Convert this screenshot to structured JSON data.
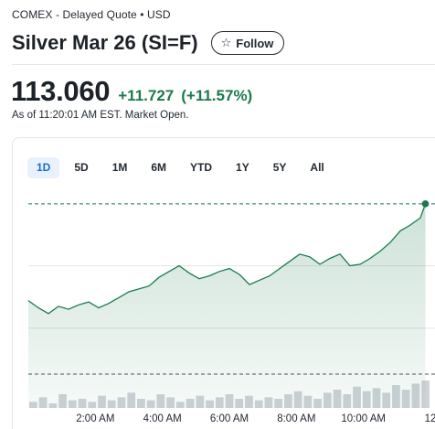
{
  "header": {
    "exchange": "COMEX - Delayed Quote • USD",
    "title": "Silver Mar 26 (SI=F)",
    "follow_label": "Follow",
    "follow_icon": "star-outline-icon"
  },
  "quote": {
    "price": "113.060",
    "change": "+11.727",
    "change_pct": "(+11.57%)",
    "as_of": "As of 11:20:01 AM EST. Market Open.",
    "positive_color": "#1b7a4c"
  },
  "ranges": [
    {
      "label": "1D",
      "active": true
    },
    {
      "label": "5D",
      "active": false
    },
    {
      "label": "1M",
      "active": false
    },
    {
      "label": "6M",
      "active": false
    },
    {
      "label": "YTD",
      "active": false
    },
    {
      "label": "1Y",
      "active": false
    },
    {
      "label": "5Y",
      "active": false
    },
    {
      "label": "All",
      "active": false
    }
  ],
  "chart_data": {
    "type": "area",
    "x_tick_labels": [
      "2:00 AM",
      "4:00 AM",
      "6:00 AM",
      "8:00 AM",
      "10:00 AM",
      "12"
    ],
    "x_ticks_hours": [
      2,
      4,
      6,
      8,
      10,
      12
    ],
    "x_range_hours": [
      0,
      12
    ],
    "y_range": [
      99,
      114.5
    ],
    "grid": true,
    "reference_lines": [
      {
        "kind": "last",
        "value": 113.06,
        "style": "dashed"
      },
      {
        "kind": "previous_close",
        "value": 101.333,
        "style": "dashed"
      }
    ],
    "line_color": "#1b7a4c",
    "series": [
      {
        "x": [
          0.0,
          0.3,
          0.6,
          0.9,
          1.2,
          1.5,
          1.8,
          2.1,
          2.4,
          2.7,
          3.0,
          3.3,
          3.6,
          3.9,
          4.2,
          4.5,
          4.8,
          5.1,
          5.4,
          5.7,
          6.0,
          6.3,
          6.6,
          6.9,
          7.2,
          7.5,
          7.8,
          8.1,
          8.4,
          8.7,
          9.0,
          9.3,
          9.6,
          9.9,
          10.2,
          10.5,
          10.8,
          11.1,
          11.4,
          11.7,
          11.85
        ],
        "y": [
          106.4,
          105.9,
          105.5,
          106.0,
          105.8,
          106.1,
          106.3,
          105.9,
          106.2,
          106.6,
          107.0,
          107.2,
          107.4,
          108.0,
          108.4,
          108.8,
          108.3,
          107.9,
          108.1,
          108.4,
          108.6,
          108.2,
          107.5,
          107.8,
          108.1,
          108.6,
          109.1,
          109.6,
          109.4,
          108.9,
          109.3,
          109.6,
          108.8,
          108.9,
          109.3,
          109.8,
          110.4,
          111.2,
          111.6,
          112.1,
          113.06
        ]
      }
    ],
    "volume": [
      4,
      7,
      3,
      9,
      5,
      6,
      4,
      8,
      5,
      7,
      10,
      6,
      5,
      9,
      7,
      4,
      6,
      8,
      5,
      7,
      9,
      6,
      8,
      5,
      7,
      6,
      9,
      11,
      8,
      6,
      10,
      12,
      9,
      14,
      11,
      13,
      10,
      15,
      12,
      16,
      18
    ]
  }
}
